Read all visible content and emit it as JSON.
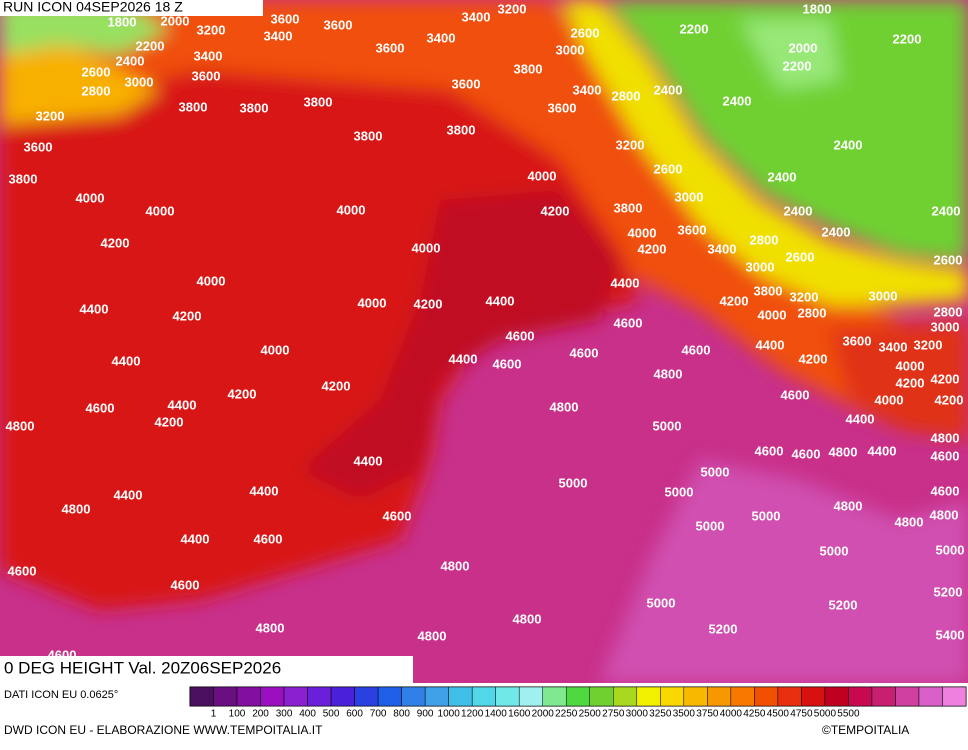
{
  "header": {
    "title": "RUN ICON 04SEP2026 18 Z"
  },
  "map": {
    "title": "0 DEG HEIGHT Val. 20Z06SEP2026",
    "contour_labels": [
      1800,
      2000,
      3600,
      3400,
      3200,
      1800,
      3200,
      3400,
      3600,
      2200,
      2400,
      3400,
      3600,
      3400,
      2600,
      3000,
      2200,
      2000,
      2200,
      2600,
      3000,
      3600,
      3800,
      2200,
      2800,
      3600,
      3400,
      2800,
      2400,
      2400,
      3800,
      3800,
      3800,
      3600,
      3200,
      3800,
      3800,
      3200,
      2400,
      3600,
      4000,
      2600,
      2400,
      3800,
      4000,
      3000,
      4000,
      4000,
      4200,
      3800,
      2400,
      2400,
      4000,
      3600,
      2400,
      4200,
      4000,
      4200,
      3400,
      2800,
      2600,
      2600,
      3000,
      4000,
      4400,
      3800,
      3200,
      3000,
      4000,
      4200,
      4400,
      4200,
      4400,
      4200,
      4000,
      2800,
      2800,
      3000,
      4600,
      4600,
      3600,
      3400,
      3200,
      4000,
      4600,
      4600,
      4400,
      4400,
      4400,
      4600,
      4200,
      4000,
      4800,
      4200,
      4200,
      4200,
      4200,
      4600,
      4400,
      4800,
      4600,
      4000,
      4200,
      4200,
      4800,
      5000,
      4400,
      4800,
      4600,
      4600,
      4800,
      4400,
      4600,
      4400,
      5000,
      5000,
      5000,
      4400,
      4400,
      4600,
      4800,
      4800,
      4800,
      4600,
      4800,
      5000,
      5000,
      4400,
      4600,
      5000,
      5000,
      4600,
      4800,
      4600,
      5200,
      5000,
      5200,
      4800,
      4800,
      5200,
      5400,
      4800,
      4600
    ]
  },
  "legend": {
    "colors": [
      "#4b0f5f",
      "#6a0f82",
      "#820fa0",
      "#9a10c0",
      "#8a20d0",
      "#6a20d8",
      "#4a20d8",
      "#2a40e0",
      "#2060e8",
      "#3080e8",
      "#40a0e8",
      "#40c0e8",
      "#50d8e8",
      "#70e8e8",
      "#a0f0f0",
      "#80e890",
      "#50d840",
      "#70d030",
      "#a8d820",
      "#f0f000",
      "#f8d800",
      "#f8b800",
      "#f89800",
      "#f87800",
      "#f05000",
      "#e83010",
      "#d81010",
      "#c00020",
      "#c80850",
      "#c82070",
      "#d040a0",
      "#d860c8",
      "#f080e0"
    ],
    "ticks": [
      1,
      100,
      200,
      300,
      400,
      500,
      600,
      700,
      800,
      900,
      1000,
      1200,
      1400,
      1600,
      2000,
      2250,
      2500,
      2750,
      3000,
      3250,
      3500,
      3750,
      4000,
      4250,
      4500,
      4750,
      5000,
      5500
    ]
  },
  "footer": {
    "source": "DATI ICON EU 0.0625°",
    "credit": "DWD ICON EU - ELABORAZIONE WWW.TEMPOITALIA.IT",
    "copyright": "©TEMPOITALIA"
  }
}
